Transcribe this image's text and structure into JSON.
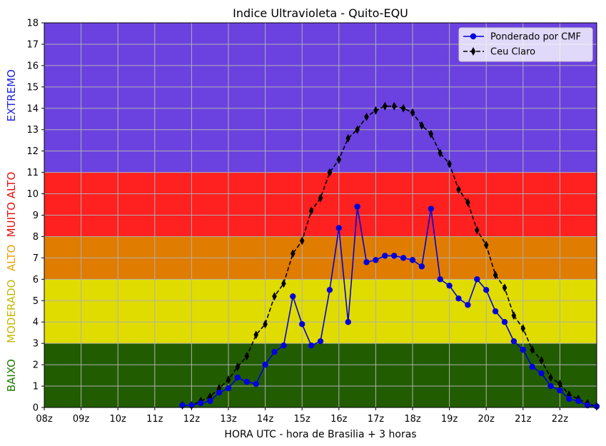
{
  "chart_data": {
    "type": "line",
    "title": "Indice Ultravioleta - Quito-EQU",
    "xlabel": "HORA UTC - hora de Brasilia + 3 horas",
    "ylabel": "",
    "xlim": [
      8,
      23
    ],
    "ylim": [
      0,
      18
    ],
    "x_tick_labels": [
      "08z",
      "09z",
      "10z",
      "11z",
      "12z",
      "13z",
      "14z",
      "15z",
      "16z",
      "17z",
      "18z",
      "19z",
      "20z",
      "21z",
      "22z"
    ],
    "y_ticks": [
      0,
      1,
      2,
      3,
      4,
      5,
      6,
      7,
      8,
      9,
      10,
      11,
      12,
      13,
      14,
      15,
      16,
      17,
      18
    ],
    "grid": true,
    "legend_position": "top-right",
    "zones": [
      {
        "label": "BAIXO",
        "from": 0,
        "to": 3,
        "fill": "#215c00",
        "label_color": "#1d7a00"
      },
      {
        "label": "MODERADO",
        "from": 3,
        "to": 6,
        "fill": "#e0dc00",
        "label_color": "#c4b800"
      },
      {
        "label": "ALTO",
        "from": 6,
        "to": 8,
        "fill": "#e07c00",
        "label_color": "#f0a000"
      },
      {
        "label": "MUITO ALTO",
        "from": 8,
        "to": 11,
        "fill": "#ff2020",
        "label_color": "#e81010"
      },
      {
        "label": "EXTREMO",
        "from": 11,
        "to": 18,
        "fill": "#6b42e0",
        "label_color": "#2222dd"
      }
    ],
    "series": [
      {
        "name": "Ponderado por CMF",
        "color": "#0000dd",
        "line_style": "solid",
        "marker": "circle",
        "x": [
          11.75,
          12.0,
          12.25,
          12.5,
          12.75,
          13.0,
          13.25,
          13.5,
          13.75,
          14.0,
          14.25,
          14.5,
          14.75,
          15.0,
          15.25,
          15.5,
          15.75,
          16.0,
          16.25,
          16.5,
          16.75,
          17.0,
          17.25,
          17.5,
          17.75,
          18.0,
          18.25,
          18.5,
          18.75,
          19.0,
          19.25,
          19.5,
          19.75,
          20.0,
          20.25,
          20.5,
          20.75,
          21.0,
          21.25,
          21.5,
          21.75,
          22.0,
          22.25,
          22.5,
          22.75,
          23.0
        ],
        "y": [
          0.1,
          0.1,
          0.2,
          0.3,
          0.7,
          0.9,
          1.4,
          1.2,
          1.1,
          2.0,
          2.6,
          2.9,
          5.2,
          3.9,
          2.9,
          3.1,
          5.5,
          8.4,
          4.0,
          9.4,
          6.8,
          6.9,
          7.1,
          7.1,
          7.0,
          6.9,
          6.6,
          9.3,
          6.0,
          5.7,
          5.1,
          4.8,
          6.0,
          5.5,
          4.5,
          4.0,
          3.1,
          2.7,
          1.9,
          1.6,
          1.0,
          0.8,
          0.4,
          0.3,
          0.1,
          0.05
        ]
      },
      {
        "name": "Ceu Claro",
        "color": "#000000",
        "line_style": "dashed",
        "marker": "thin_diamond",
        "x": [
          11.75,
          12.0,
          12.25,
          12.5,
          12.75,
          13.0,
          13.25,
          13.5,
          13.75,
          14.0,
          14.25,
          14.5,
          14.75,
          15.0,
          15.25,
          15.5,
          15.75,
          16.0,
          16.25,
          16.5,
          16.75,
          17.0,
          17.25,
          17.5,
          17.75,
          18.0,
          18.25,
          18.5,
          18.75,
          19.0,
          19.25,
          19.5,
          19.75,
          20.0,
          20.25,
          20.5,
          20.75,
          21.0,
          21.25,
          21.5,
          21.75,
          22.0,
          22.25,
          22.5,
          22.75,
          23.0
        ],
        "y": [
          0.1,
          0.1,
          0.3,
          0.5,
          0.9,
          1.3,
          1.9,
          2.4,
          3.4,
          3.9,
          5.2,
          5.8,
          7.2,
          7.8,
          9.2,
          9.8,
          11.0,
          11.6,
          12.6,
          13.0,
          13.6,
          13.9,
          14.1,
          14.1,
          14.0,
          13.8,
          13.2,
          12.8,
          11.9,
          11.4,
          10.2,
          9.6,
          8.3,
          7.6,
          6.2,
          5.6,
          4.3,
          3.7,
          2.7,
          2.2,
          1.4,
          1.1,
          0.6,
          0.4,
          0.2,
          0.05
        ]
      }
    ]
  }
}
